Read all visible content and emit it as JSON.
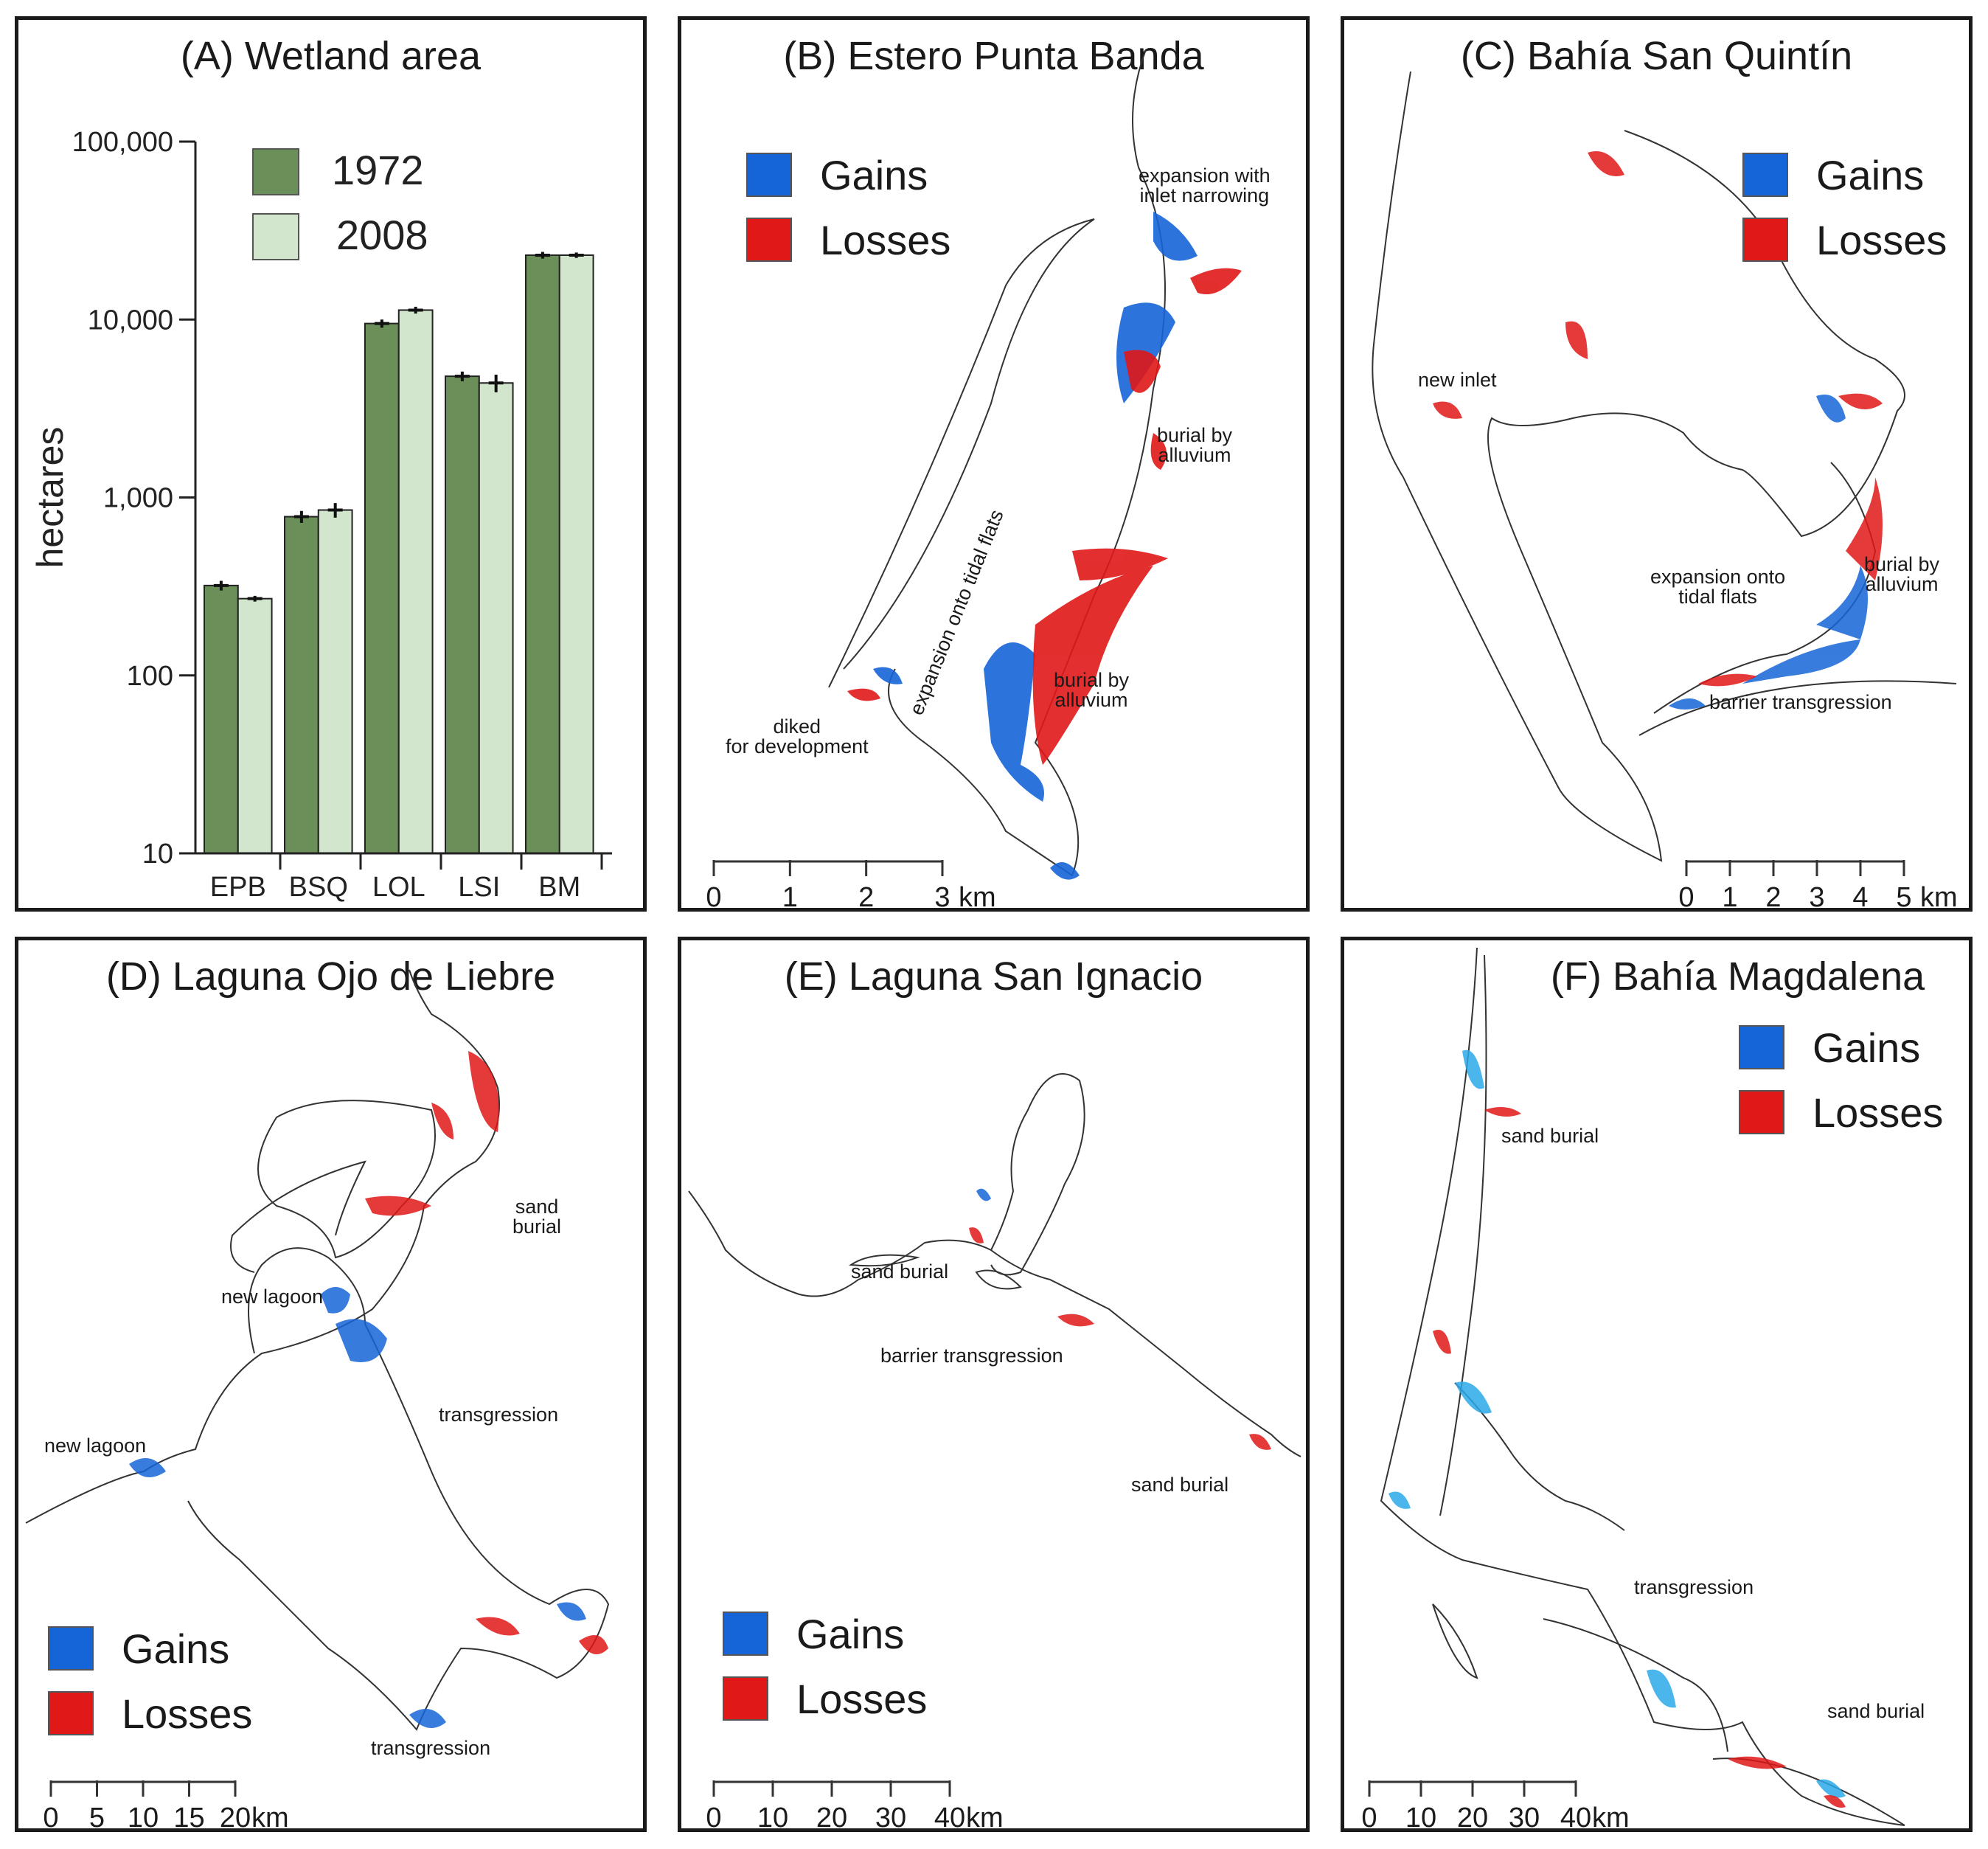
{
  "colors": {
    "bar_1972": "#6a8f58",
    "bar_2008": "#d2e6cd",
    "gains": "#1565d8",
    "losses": "#e01818",
    "frame": "#1a1a1a"
  },
  "chart_data": {
    "type": "bar",
    "title": "(A) Wetland area",
    "ylabel": "hectares",
    "xlabel": "",
    "yscale": "log",
    "ylim": [
      10,
      100000
    ],
    "yticks": [
      10,
      100,
      1000,
      10000,
      100000
    ],
    "ytick_labels": [
      "10",
      "100",
      "1,000",
      "10,000",
      "100,000"
    ],
    "categories": [
      "EPB",
      "BSQ",
      "LOL",
      "LSI",
      "BM"
    ],
    "series": [
      {
        "name": "1972",
        "values": [
          320,
          780,
          9500,
          4800,
          23000
        ],
        "errors": [
          20,
          60,
          500,
          300,
          1000
        ]
      },
      {
        "name": "2008",
        "values": [
          270,
          850,
          11300,
          4400,
          23000
        ],
        "errors": [
          10,
          80,
          500,
          500,
          800
        ]
      }
    ],
    "legend_position": "top-left"
  },
  "panels": {
    "b": {
      "title": "(B) Estero Punta Banda",
      "legend": {
        "gains": "Gains",
        "losses": "Losses"
      },
      "annotations": {
        "expansion_inlet": "expansion with\ninlet narrowing",
        "burial1": "burial by\nalluvium",
        "burial2": "burial by\nalluvium",
        "tidal": "expansion onto tidal flats",
        "diked": "diked\nfor development"
      },
      "scale": {
        "ticks": [
          "0",
          "1",
          "2",
          "3"
        ],
        "unit": "km"
      }
    },
    "c": {
      "title": "(C) Bahía San Quintín",
      "legend": {
        "gains": "Gains",
        "losses": "Losses"
      },
      "annotations": {
        "new_inlet": "new inlet",
        "expansion": "expansion onto\ntidal flats",
        "burial": "burial by\nalluvium",
        "barrier": "barrier transgression"
      },
      "scale": {
        "ticks": [
          "0",
          "1",
          "2",
          "3",
          "4",
          "5"
        ],
        "unit": "km"
      }
    },
    "d": {
      "title": "(D) Laguna Ojo de Liebre",
      "legend": {
        "gains": "Gains",
        "losses": "Losses"
      },
      "annotations": {
        "sand_burial": "sand\nburial",
        "new_lagoon1": "new lagoon",
        "new_lagoon2": "new lagoon",
        "transgression1": "transgression",
        "transgression2": "transgression"
      },
      "scale": {
        "ticks": [
          "0",
          "5",
          "10",
          "15",
          "20"
        ],
        "unit": "km"
      }
    },
    "e": {
      "title": "(E) Laguna San Ignacio",
      "legend": {
        "gains": "Gains",
        "losses": "Losses"
      },
      "annotations": {
        "sand_burial1": "sand burial",
        "barrier": "barrier transgression",
        "sand_burial2": "sand burial"
      },
      "scale": {
        "ticks": [
          "0",
          "10",
          "20",
          "30",
          "40"
        ],
        "unit": "km"
      }
    },
    "f": {
      "title": "(F) Bahía Magdalena",
      "legend": {
        "gains": "Gains",
        "losses": "Losses"
      },
      "annotations": {
        "sand_burial1": "sand burial",
        "transgression": "transgression",
        "sand_burial2": "sand burial"
      },
      "scale": {
        "ticks": [
          "0",
          "10",
          "20",
          "30",
          "40"
        ],
        "unit": "km"
      }
    }
  }
}
